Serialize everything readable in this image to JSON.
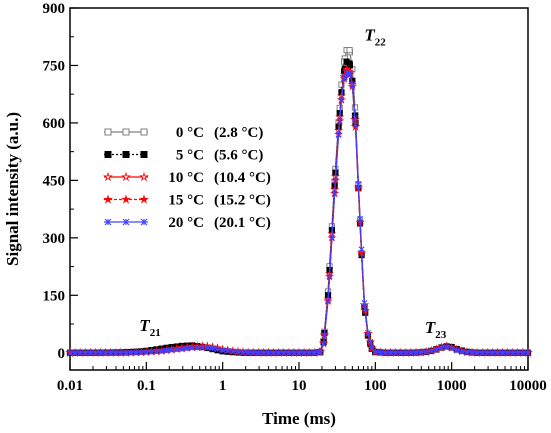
{
  "chart_data": {
    "type": "line",
    "title": "",
    "xlabel": "Time (ms)",
    "ylabel": "Signal intensity (a.u.)",
    "xscale": "log",
    "xlim": [
      0.01,
      10000
    ],
    "ylim": [
      -45,
      900
    ],
    "xticks": [
      0.01,
      0.1,
      1,
      10,
      100,
      1000,
      10000
    ],
    "xtick_labels": [
      "0.01",
      "0.1",
      "1",
      "10",
      "100",
      "1000",
      "10000"
    ],
    "yticks": [
      0,
      150,
      300,
      450,
      600,
      750,
      900
    ],
    "ytick_labels": [
      "0",
      "150",
      "300",
      "450",
      "600",
      "750",
      "900"
    ],
    "grid": false,
    "legend_position": "left-middle",
    "annotations": [
      {
        "text": "T",
        "sub": "21",
        "x": 0.2,
        "y": 20
      },
      {
        "text": "T",
        "sub": "22",
        "x": 50,
        "y": 800
      },
      {
        "text": "T",
        "sub": "23",
        "x": 700,
        "y": 20
      }
    ],
    "series": [
      {
        "name": "0 °C (2.8 °C)",
        "label_a": "0 °C",
        "label_b": "(2.8 °C)",
        "color": "#808080",
        "dash": "",
        "marker": "open-square",
        "x": [
          0.01,
          0.02,
          0.05,
          0.08,
          0.1,
          0.15,
          0.2,
          0.3,
          0.4,
          0.6,
          0.8,
          1,
          1.5,
          2,
          3,
          5,
          8,
          12,
          16,
          19,
          21,
          24,
          27,
          30,
          33,
          36,
          39,
          42,
          46,
          50,
          55,
          60,
          66,
          72,
          80,
          90,
          100,
          130,
          200,
          300,
          400,
          500,
          600,
          700,
          800,
          900,
          1000,
          1200,
          1500,
          2000,
          3000,
          5000,
          10000
        ],
        "y": [
          0,
          0,
          0,
          2,
          4,
          8,
          12,
          16,
          17,
          13,
          8,
          4,
          1,
          0,
          0,
          0,
          0,
          0,
          0,
          2,
          30,
          160,
          330,
          480,
          600,
          700,
          760,
          790,
          790,
          740,
          620,
          440,
          260,
          120,
          45,
          10,
          2,
          0,
          0,
          0,
          1,
          3,
          8,
          13,
          16,
          16,
          13,
          7,
          2,
          0,
          0,
          0,
          0
        ]
      },
      {
        "name": "5 °C (5.6 °C)",
        "label_a": "5 °C",
        "label_b": "(5.6 °C)",
        "color": "#000000",
        "dash": "2,2",
        "marker": "filled-square",
        "x": [
          0.01,
          0.02,
          0.05,
          0.08,
          0.1,
          0.15,
          0.2,
          0.3,
          0.4,
          0.6,
          0.8,
          1,
          1.5,
          2,
          3,
          5,
          8,
          12,
          16,
          19,
          21,
          24,
          27,
          30,
          33,
          36,
          39,
          42,
          46,
          50,
          55,
          60,
          66,
          72,
          80,
          90,
          100,
          130,
          200,
          300,
          400,
          500,
          600,
          700,
          800,
          900,
          1000,
          1200,
          1500,
          2000,
          3000,
          5000,
          10000
        ],
        "y": [
          0,
          0,
          1,
          3,
          5,
          10,
          14,
          18,
          19,
          14,
          8,
          4,
          1,
          0,
          0,
          0,
          0,
          0,
          0,
          2,
          28,
          150,
          320,
          470,
          590,
          680,
          735,
          760,
          755,
          710,
          600,
          430,
          255,
          120,
          45,
          10,
          2,
          0,
          0,
          0,
          1,
          3,
          7,
          12,
          16,
          17,
          15,
          9,
          3,
          0,
          0,
          0,
          0
        ]
      },
      {
        "name": "10 °C (10.4 °C)",
        "label_a": "10 °C",
        "label_b": "(10.4 °C)",
        "color": "#ff0000",
        "dash": "",
        "marker": "open-star",
        "x": [
          0.01,
          0.02,
          0.05,
          0.08,
          0.1,
          0.15,
          0.2,
          0.3,
          0.4,
          0.6,
          0.8,
          1,
          1.5,
          2,
          3,
          5,
          8,
          12,
          16,
          19,
          21,
          24,
          27,
          30,
          33,
          36,
          39,
          42,
          46,
          50,
          55,
          60,
          66,
          72,
          80,
          90,
          100,
          130,
          200,
          300,
          400,
          500,
          600,
          700,
          800,
          900,
          1000,
          1200,
          1500,
          2000,
          3000,
          5000,
          10000
        ],
        "y": [
          0,
          0,
          0,
          1,
          2,
          5,
          9,
          14,
          17,
          18,
          14,
          9,
          3,
          1,
          0,
          0,
          0,
          0,
          0,
          2,
          25,
          140,
          310,
          460,
          580,
          670,
          720,
          740,
          735,
          700,
          590,
          430,
          260,
          125,
          50,
          12,
          2,
          0,
          0,
          0,
          1,
          3,
          8,
          13,
          17,
          17,
          13,
          7,
          2,
          0,
          0,
          0,
          0
        ]
      },
      {
        "name": "15 °C (15.2 °C)",
        "label_a": "15 °C",
        "label_b": "(15.2 °C)",
        "color": "#ff0000",
        "dash": "3,2",
        "marker": "filled-star",
        "x": [
          0.01,
          0.02,
          0.05,
          0.08,
          0.1,
          0.15,
          0.2,
          0.3,
          0.4,
          0.6,
          0.8,
          1,
          1.5,
          2,
          3,
          5,
          8,
          12,
          16,
          19,
          21,
          24,
          27,
          30,
          33,
          36,
          39,
          42,
          46,
          50,
          55,
          60,
          66,
          72,
          80,
          90,
          100,
          130,
          200,
          300,
          400,
          500,
          600,
          700,
          800,
          900,
          1000,
          1200,
          1500,
          2000,
          3000,
          5000,
          10000
        ],
        "y": [
          0,
          0,
          0,
          1,
          2,
          4,
          7,
          11,
          14,
          15,
          13,
          8,
          3,
          1,
          0,
          0,
          0,
          0,
          0,
          2,
          24,
          135,
          300,
          450,
          570,
          660,
          715,
          735,
          730,
          695,
          590,
          430,
          260,
          125,
          50,
          12,
          2,
          0,
          0,
          0,
          1,
          3,
          7,
          12,
          15,
          16,
          13,
          7,
          2,
          0,
          0,
          0,
          0
        ]
      },
      {
        "name": "20 °C (20.1 °C)",
        "label_a": "20 °C",
        "label_b": "(20.1 °C)",
        "color": "#4040ff",
        "dash": "",
        "marker": "x",
        "x": [
          0.01,
          0.02,
          0.05,
          0.08,
          0.1,
          0.15,
          0.2,
          0.3,
          0.4,
          0.6,
          0.8,
          1,
          1.5,
          2,
          3,
          5,
          8,
          12,
          16,
          19,
          21,
          24,
          27,
          30,
          33,
          36,
          39,
          42,
          46,
          50,
          55,
          60,
          66,
          72,
          80,
          90,
          100,
          130,
          200,
          300,
          400,
          500,
          600,
          700,
          800,
          900,
          1000,
          1200,
          1500,
          2000,
          3000,
          5000,
          10000
        ],
        "y": [
          0,
          0,
          0,
          1,
          2,
          4,
          7,
          10,
          13,
          14,
          11,
          7,
          3,
          1,
          0,
          0,
          0,
          0,
          0,
          2,
          24,
          135,
          300,
          450,
          570,
          660,
          715,
          730,
          730,
          700,
          595,
          440,
          270,
          130,
          52,
          13,
          2,
          0,
          0,
          0,
          1,
          3,
          7,
          12,
          15,
          15,
          12,
          6,
          2,
          0,
          0,
          0,
          0
        ]
      }
    ]
  }
}
